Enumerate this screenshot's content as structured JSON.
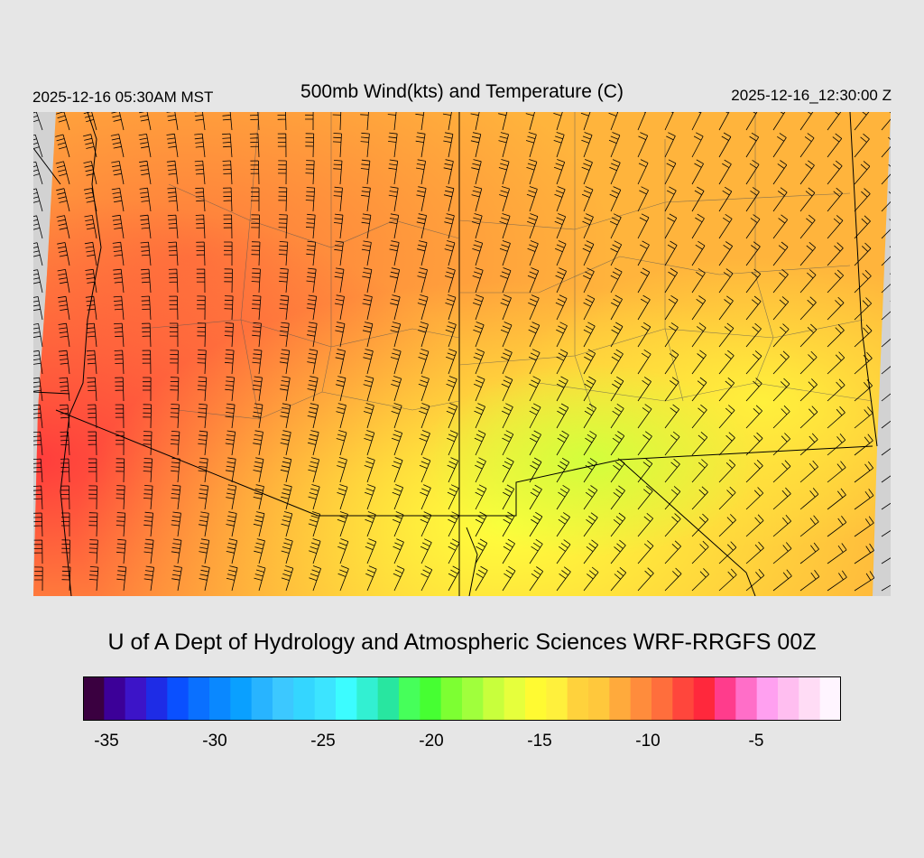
{
  "header": {
    "local_time": "2025-12-16 05:30AM MST",
    "title": "500mb Wind(kts) and Temperature (C)",
    "valid_time": "2025-12-16_12:30:00 Z"
  },
  "footer": {
    "credit": "U of A Dept of Hydrology and Atmospheric Sciences WRF-RRGFS 00Z"
  },
  "colorbar": {
    "colors": [
      "#3a0040",
      "#3c0098",
      "#3c14c8",
      "#1e2ce6",
      "#0a50ff",
      "#0a70ff",
      "#0a88ff",
      "#0aa0ff",
      "#28b4ff",
      "#3cc8ff",
      "#34d6ff",
      "#3ce4ff",
      "#3cfcff",
      "#32f0d2",
      "#28e6a0",
      "#46ff5a",
      "#46ff32",
      "#7dff32",
      "#a0ff3c",
      "#c8ff3c",
      "#e6ff3c",
      "#fffa32",
      "#fff03c",
      "#ffd23c",
      "#ffc83c",
      "#ffaa3c",
      "#ff8c3c",
      "#ff6e3c",
      "#ff463c",
      "#ff283c",
      "#ff3c8c",
      "#ff6ec8",
      "#ffa0f0",
      "#ffbef0",
      "#ffdcf5",
      "#fff5ff"
    ],
    "tick_labels": [
      "-35",
      "-30",
      "-25",
      "-20",
      "-15",
      "-10",
      "-5"
    ],
    "tick_values": [
      -35,
      -30,
      -25,
      -20,
      -15,
      -10,
      -5
    ]
  },
  "map": {
    "variable": "500mb temperature (C) with wind barbs (kts)",
    "land_color": "#ffb43c",
    "outside_color": "#d2d2d2"
  }
}
